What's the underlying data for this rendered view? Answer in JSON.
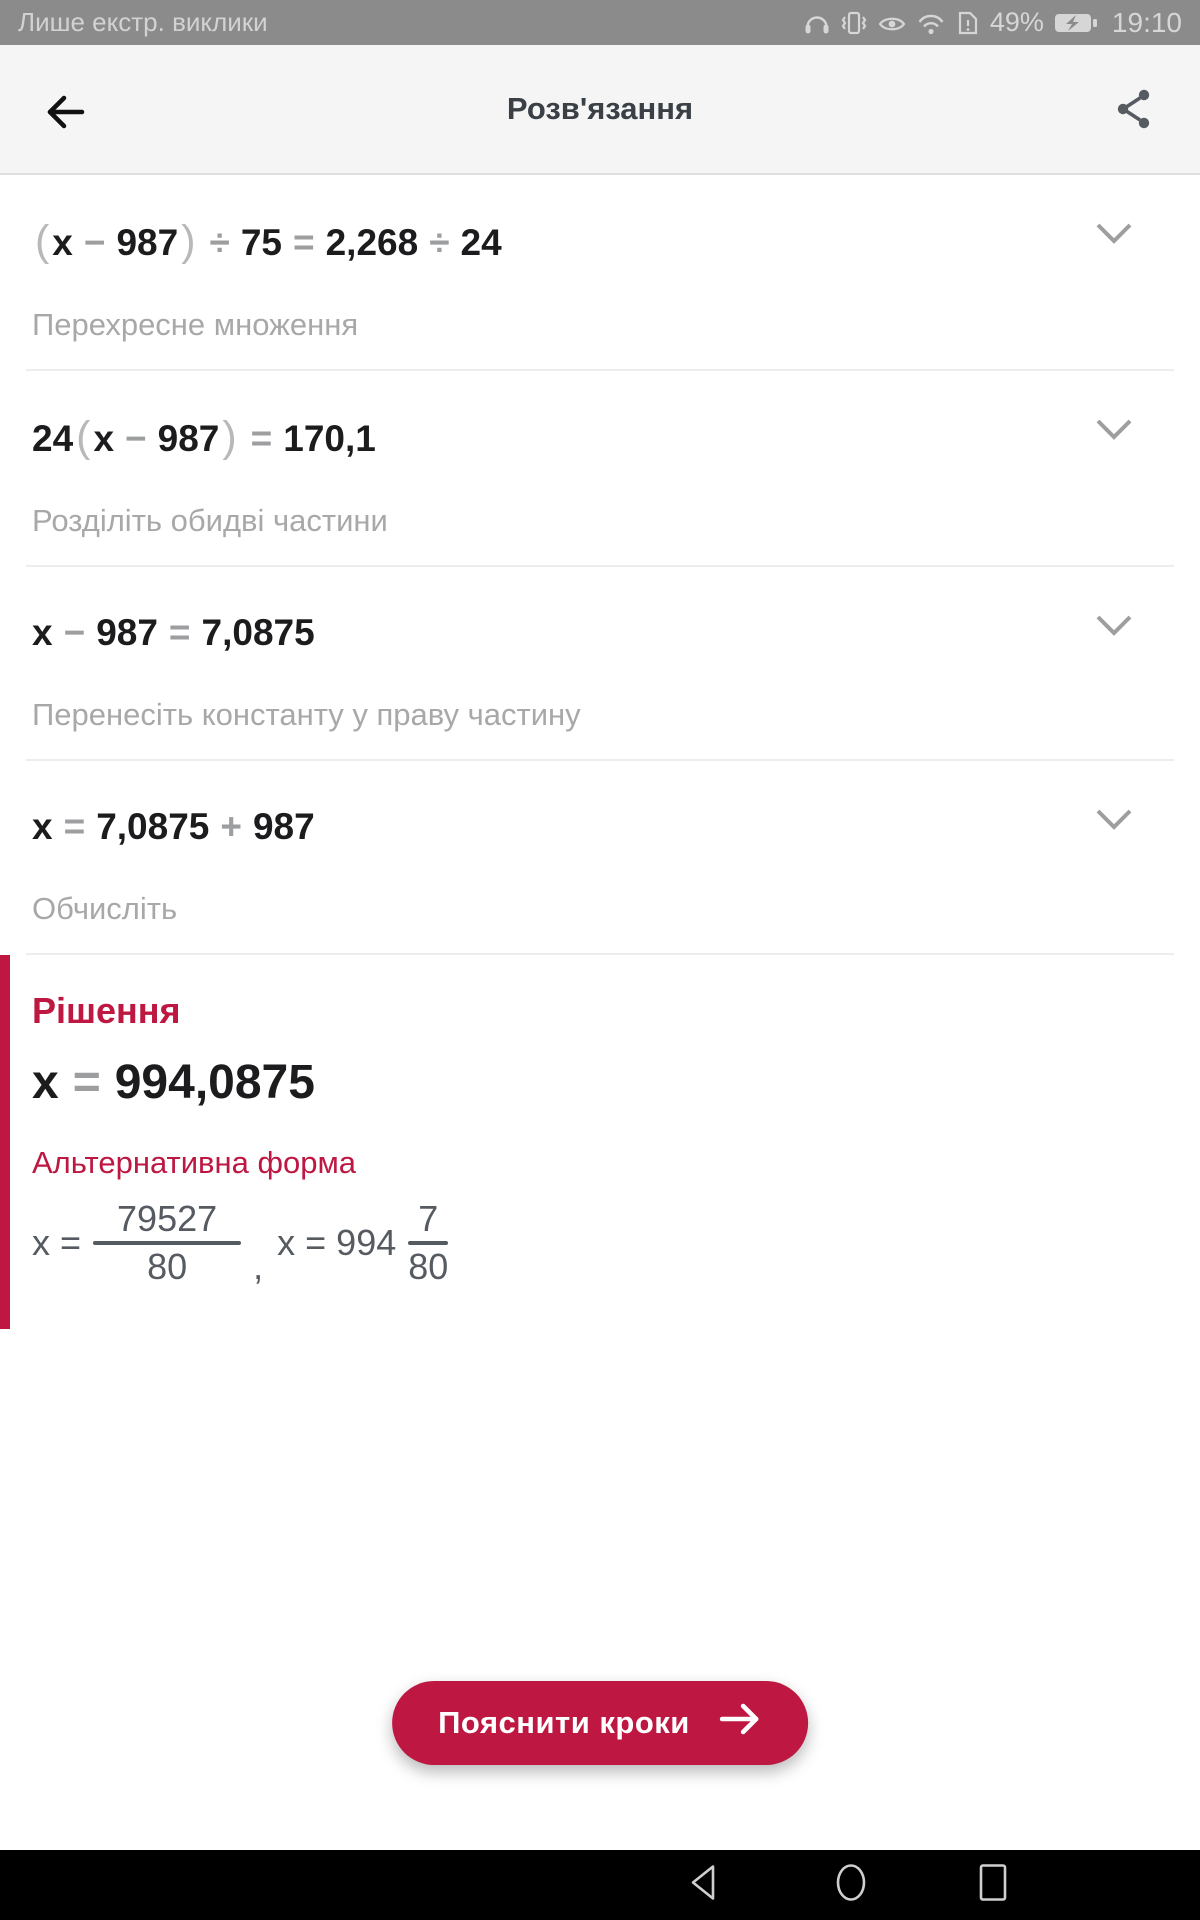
{
  "status_bar": {
    "carrier_text": "Лише екстр. виклики",
    "battery_percent": "49%",
    "time": "19:10",
    "icons": [
      "headset-icon",
      "vibrate-icon",
      "eye-comfort-icon",
      "wifi-icon",
      "sim-alert-icon",
      "battery-charging-icon"
    ]
  },
  "header": {
    "title": "Розв'язання"
  },
  "steps": [
    {
      "equation_text": "(x − 987) ÷ 75 = 2,268 ÷ 24",
      "equation_tokens": [
        {
          "text": "(",
          "style": "paren"
        },
        {
          "text": "x",
          "style": "var"
        },
        {
          "text": "−",
          "style": "op"
        },
        {
          "text": "987",
          "style": "num"
        },
        {
          "text": ")",
          "style": "paren"
        },
        {
          "text": "÷",
          "style": "op"
        },
        {
          "text": "75",
          "style": "num"
        },
        {
          "text": "=",
          "style": "op"
        },
        {
          "text": "2,268",
          "style": "num"
        },
        {
          "text": "÷",
          "style": "op"
        },
        {
          "text": "24",
          "style": "num"
        }
      ],
      "label": "Перехресне множення"
    },
    {
      "equation_text": "24(x − 987) = 170,1",
      "equation_tokens": [
        {
          "text": "24",
          "style": "num"
        },
        {
          "text": "(",
          "style": "paren"
        },
        {
          "text": "x",
          "style": "var"
        },
        {
          "text": "−",
          "style": "op"
        },
        {
          "text": "987",
          "style": "num"
        },
        {
          "text": ")",
          "style": "paren"
        },
        {
          "text": "=",
          "style": "op"
        },
        {
          "text": "170,1",
          "style": "num"
        }
      ],
      "label": "Розділіть обидві частини"
    },
    {
      "equation_text": "x − 987 = 7,0875",
      "equation_tokens": [
        {
          "text": "x",
          "style": "var"
        },
        {
          "text": "−",
          "style": "op"
        },
        {
          "text": "987",
          "style": "num"
        },
        {
          "text": "=",
          "style": "op"
        },
        {
          "text": "7,0875",
          "style": "num"
        }
      ],
      "label": "Перенесіть константу у праву частину"
    },
    {
      "equation_text": "x = 7,0875 + 987",
      "equation_tokens": [
        {
          "text": "x",
          "style": "var"
        },
        {
          "text": "=",
          "style": "op"
        },
        {
          "text": "7,0875",
          "style": "num"
        },
        {
          "text": "+",
          "style": "op"
        },
        {
          "text": "987",
          "style": "num"
        }
      ],
      "label": "Обчисліть"
    }
  ],
  "solution": {
    "heading": "Рішення",
    "result_text": "x = 994,0875",
    "result_tokens": [
      {
        "text": "x",
        "style": "var"
      },
      {
        "text": "=",
        "style": "op"
      },
      {
        "text": "994,0875",
        "style": "num"
      }
    ],
    "alt_label": "Альтернативна форма",
    "alt_expr1": {
      "lhs": "x =",
      "numerator": "79527",
      "denominator": "80"
    },
    "alt_comma": ",",
    "alt_expr2": {
      "lhs": "x = 994",
      "numerator": "7",
      "denominator": "80"
    }
  },
  "explain_button": {
    "label": "Пояснити кроки"
  },
  "nav_bar": {
    "buttons": [
      "back",
      "home",
      "recents"
    ]
  },
  "colors": {
    "accent": "#bd1742",
    "status_bar_bg": "#8b8b8b",
    "header_bg": "#f5f5f5",
    "operator_gray": "#9c9ea0",
    "label_gray": "#a8a8a8",
    "alt_form_gray": "#565b62",
    "nav_bg": "#000000"
  }
}
